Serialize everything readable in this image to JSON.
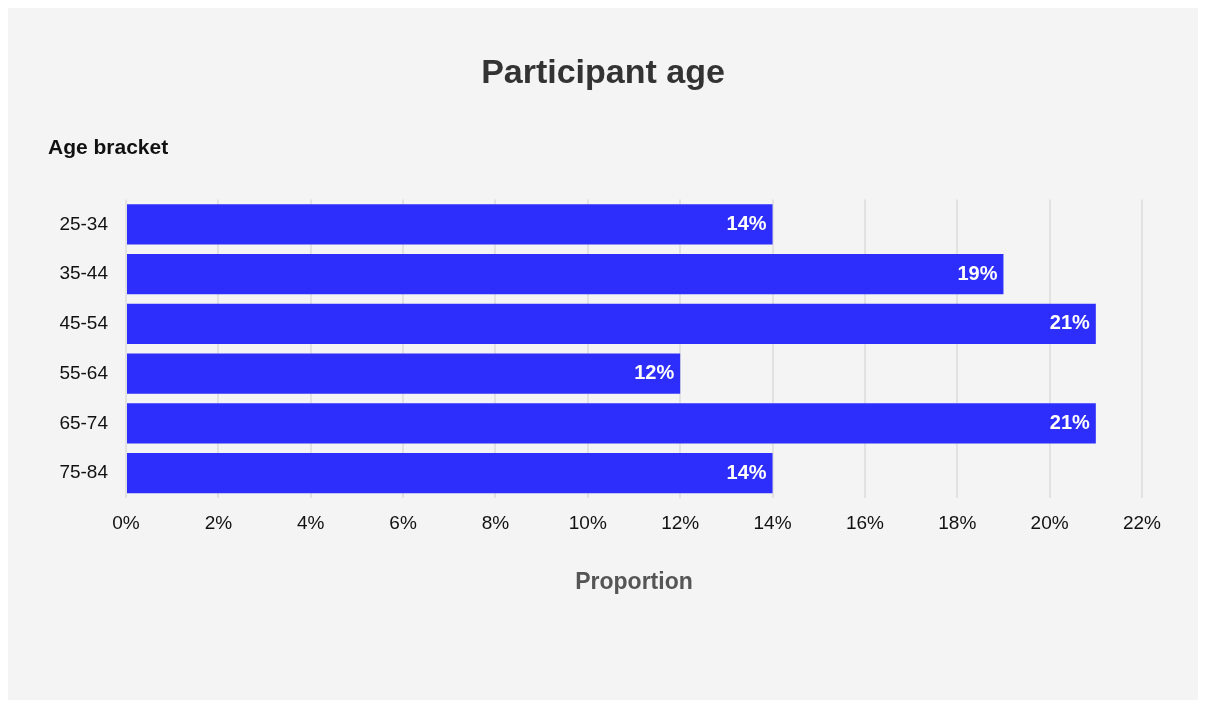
{
  "chart_data": {
    "type": "bar",
    "orientation": "horizontal",
    "title": "Participant age",
    "ylabel": "Age bracket",
    "xlabel": "Proportion",
    "categories": [
      "25-34",
      "35-44",
      "45-54",
      "55-64",
      "65-74",
      "75-84"
    ],
    "values": [
      14,
      19,
      21,
      12,
      21,
      14
    ],
    "value_labels": [
      "14%",
      "19%",
      "21%",
      "12%",
      "21%",
      "14%"
    ],
    "color": "#2e2efc",
    "xlim": [
      0,
      22
    ],
    "xticks": [
      {
        "value": 0,
        "label": "0%"
      },
      {
        "value": 2,
        "label": "2%"
      },
      {
        "value": 4,
        "label": "4%"
      },
      {
        "value": 6,
        "label": "6%"
      },
      {
        "value": 8,
        "label": "8%"
      },
      {
        "value": 10,
        "label": "10%"
      },
      {
        "value": 12,
        "label": "12%"
      },
      {
        "value": 14,
        "label": "14%"
      },
      {
        "value": 16,
        "label": "16%"
      },
      {
        "value": 18,
        "label": "18%"
      },
      {
        "value": 20,
        "label": "20%"
      },
      {
        "value": 22,
        "label": "22%"
      }
    ],
    "grid": "x",
    "legend": false
  }
}
